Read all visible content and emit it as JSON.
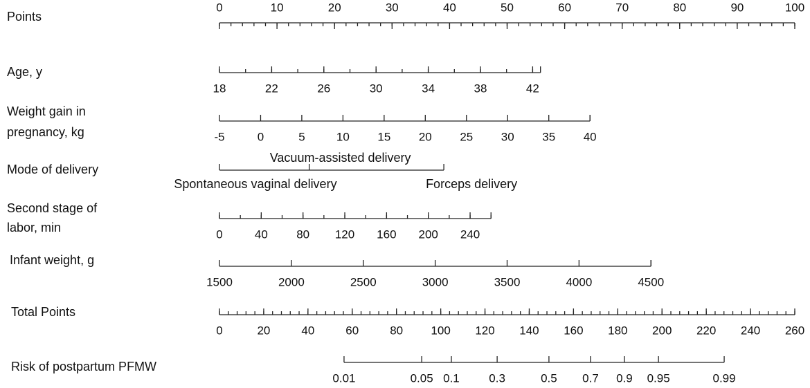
{
  "chart_data": {
    "type": "nomogram",
    "rows": [
      {
        "label": [
          "Points"
        ],
        "kind": "scale",
        "xlim": [
          0,
          100
        ],
        "ticks": [
          0,
          10,
          20,
          30,
          40,
          50,
          60,
          70,
          80,
          90,
          100
        ],
        "minor_step": 2
      },
      {
        "label": [
          "Age, y"
        ],
        "kind": "variable",
        "xlim": [
          18,
          42.6
        ],
        "points": [
          0,
          55.8
        ],
        "ticks": [
          18,
          22,
          26,
          30,
          34,
          38,
          42
        ],
        "minor_step": 2
      },
      {
        "label": [
          "Weight gain in",
          "pregnancy, kg"
        ],
        "kind": "variable",
        "xlim": [
          -5,
          40
        ],
        "points": [
          0,
          64.4
        ],
        "ticks": [
          -5,
          0,
          5,
          10,
          15,
          20,
          25,
          30,
          35,
          40
        ]
      },
      {
        "label": [
          "Mode of delivery"
        ],
        "kind": "categorical",
        "categories": [
          "Spontaneous vaginal delivery",
          "Vacuum-assisted delivery",
          "Forceps delivery"
        ],
        "category_points": [
          0,
          15.6,
          39
        ]
      },
      {
        "label": [
          "Second stage of",
          " labor, min"
        ],
        "kind": "variable",
        "xlim": [
          0,
          260
        ],
        "points": [
          0,
          47.2
        ],
        "ticks": [
          0,
          40,
          80,
          120,
          160,
          200,
          240
        ],
        "minor_step": 20
      },
      {
        "label": [
          "Infant weight, g"
        ],
        "kind": "variable",
        "xlim": [
          1500,
          4500
        ],
        "points": [
          0,
          75
        ],
        "ticks": [
          1500,
          2000,
          2500,
          3000,
          3500,
          4000,
          4500
        ]
      },
      {
        "label": [
          "Total Points"
        ],
        "kind": "scale",
        "xlim": [
          0,
          260
        ],
        "ticks": [
          0,
          20,
          40,
          60,
          80,
          100,
          120,
          140,
          160,
          180,
          200,
          220,
          240,
          260
        ],
        "minor_step": 4
      },
      {
        "label": [
          "Risk of postpartum PFMW"
        ],
        "kind": "risk",
        "ticks": [
          0.01,
          0.05,
          0.1,
          0.3,
          0.5,
          0.7,
          0.9,
          0.95,
          0.99
        ],
        "tick_points": [
          56.3,
          91.4,
          104.8,
          125.5,
          148.9,
          167.7,
          183.0,
          198.4,
          228.1
        ]
      }
    ]
  }
}
